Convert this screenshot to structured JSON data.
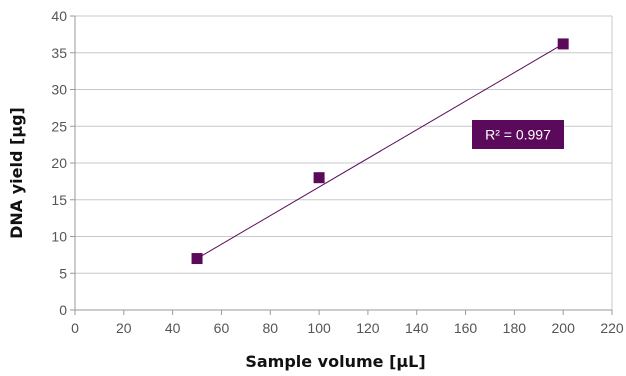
{
  "chart_data": {
    "type": "scatter",
    "title": "",
    "xlabel": "Sample volume [µL]",
    "ylabel": "DNA yield [µg]",
    "xlim": [
      0,
      220
    ],
    "ylim": [
      0,
      40
    ],
    "x_ticks": [
      "0",
      "20",
      "40",
      "60",
      "80",
      "100",
      "120",
      "140",
      "160",
      "180",
      "200",
      "220"
    ],
    "y_ticks": [
      "0",
      "5",
      "10",
      "15",
      "20",
      "25",
      "30",
      "35",
      "40"
    ],
    "grid": "horizontal",
    "series": [
      {
        "x": [
          50,
          100,
          200
        ],
        "y": [
          7.0,
          18.0,
          36.2
        ],
        "marker": "square",
        "color": "#5b0a5b"
      }
    ],
    "trendline": {
      "type": "linear",
      "x": [
        50,
        200
      ],
      "y": [
        7.0,
        36.2
      ],
      "color": "#5b0a5b"
    },
    "annotation": {
      "text": "R² = 0.997",
      "background": "#5b0a5b",
      "text_color": "#ffffff"
    }
  }
}
